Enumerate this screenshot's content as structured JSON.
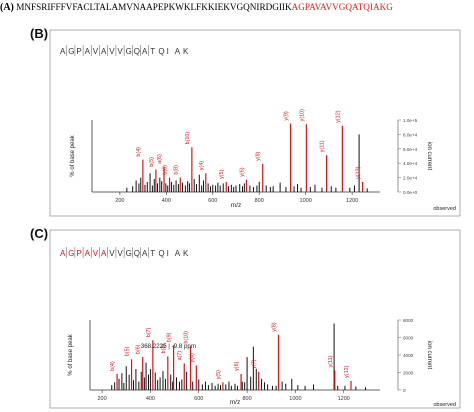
{
  "figure": {
    "panel_a_label": "(A)",
    "sequence_black": "MNFSRIFFFVFACLTALAMVNAAPEPKWKLFKKIEKVGQNIRDGIIK",
    "sequence_red": "AGPAVAVVGQATQIAKG",
    "colors": {
      "match_red": "#d8141b",
      "peak_black": "#000000",
      "axis_grey": "#7a7a7a"
    }
  },
  "chart_data": [
    {
      "panel": "(B)",
      "type": "bar",
      "peptide": "AGPAVAVVGQATQIAK",
      "peptide_red_count": 0,
      "peptide_letters": [
        "A",
        "G",
        "P",
        "A",
        "V",
        "A",
        "V",
        "V",
        "G",
        "Q",
        "A",
        "T",
        "Q",
        "I",
        "A",
        "K"
      ],
      "xlabel": "m/z",
      "ylabel_left": "% of base peak",
      "ylabel_right": "ion current",
      "corner_label": "observed",
      "xlim": [
        80,
        1320
      ],
      "xticks": [
        "200",
        "400",
        "600",
        "800",
        "1000",
        "1200"
      ],
      "ylim": [
        0,
        100
      ],
      "right_ticks": [
        "0.0e+0",
        "2.0e+4",
        "4.0e+4",
        "6.0e+4",
        "8.0e+4",
        "1.0e+5"
      ],
      "matched": [
        {
          "label": "b(4)",
          "mz": 299,
          "rel": 45
        },
        {
          "label": "b(5)",
          "mz": 355,
          "rel": 31
        },
        {
          "label": "a(6)",
          "mz": 390,
          "rel": 35
        },
        {
          "label": "b(6)",
          "mz": 414,
          "rel": 20
        },
        {
          "label": "b(8)",
          "mz": 460,
          "rel": 20
        },
        {
          "label": "b(10)",
          "mz": 510,
          "rel": 62
        },
        {
          "label": "y(4)",
          "mz": 570,
          "rel": 26
        },
        {
          "label": "y(5)",
          "mz": 658,
          "rel": 14
        },
        {
          "label": "y(6)",
          "mz": 745,
          "rel": 17
        },
        {
          "label": "y(8)",
          "mz": 815,
          "rel": 39
        },
        {
          "label": "y(9)",
          "mz": 935,
          "rel": 95
        },
        {
          "label": "y(10)",
          "mz": 1003,
          "rel": 94
        },
        {
          "label": "y(11)",
          "mz": 1090,
          "rel": 51
        },
        {
          "label": "y(12)",
          "mz": 1158,
          "rel": 92
        },
        {
          "label": "y(13)",
          "mz": 1245,
          "rel": 14
        }
      ],
      "unmatched": [
        [
          230,
          6
        ],
        [
          255,
          8
        ],
        [
          270,
          16
        ],
        [
          282,
          12
        ],
        [
          290,
          20
        ],
        [
          308,
          10
        ],
        [
          318,
          14
        ],
        [
          330,
          26
        ],
        [
          340,
          9
        ],
        [
          348,
          18
        ],
        [
          362,
          12
        ],
        [
          372,
          20
        ],
        [
          380,
          15
        ],
        [
          398,
          12
        ],
        [
          406,
          9
        ],
        [
          422,
          14
        ],
        [
          432,
          10
        ],
        [
          442,
          16
        ],
        [
          452,
          11
        ],
        [
          470,
          13
        ],
        [
          482,
          9
        ],
        [
          492,
          15
        ],
        [
          500,
          12
        ],
        [
          520,
          18
        ],
        [
          530,
          11
        ],
        [
          542,
          24
        ],
        [
          552,
          9
        ],
        [
          560,
          16
        ],
        [
          580,
          12
        ],
        [
          590,
          8
        ],
        [
          600,
          10
        ],
        [
          612,
          9
        ],
        [
          622,
          13
        ],
        [
          632,
          9
        ],
        [
          645,
          12
        ],
        [
          668,
          8
        ],
        [
          680,
          10
        ],
        [
          690,
          7
        ],
        [
          700,
          9
        ],
        [
          716,
          11
        ],
        [
          728,
          8
        ],
        [
          736,
          12
        ],
        [
          760,
          9
        ],
        [
          775,
          7
        ],
        [
          790,
          9
        ],
        [
          800,
          14
        ],
        [
          830,
          9
        ],
        [
          848,
          7
        ],
        [
          860,
          8
        ],
        [
          890,
          13
        ],
        [
          915,
          7
        ],
        [
          950,
          8
        ],
        [
          965,
          11
        ],
        [
          980,
          6
        ],
        [
          1020,
          7
        ],
        [
          1040,
          10
        ],
        [
          1070,
          6
        ],
        [
          1110,
          8
        ],
        [
          1130,
          6
        ],
        [
          1190,
          6
        ],
        [
          1210,
          9
        ],
        [
          1230,
          80
        ],
        [
          1265,
          5
        ]
      ]
    },
    {
      "panel": "(C)",
      "type": "bar",
      "peptide": "AGPAVAVVGQATQIAK",
      "peptide_red_count": 6,
      "peptide_letters": [
        "A",
        "G",
        "P",
        "A",
        "V",
        "A",
        "V",
        "V",
        "G",
        "Q",
        "A",
        "T",
        "Q",
        "I",
        "A",
        "K"
      ],
      "xlabel": "m/z",
      "ylabel_left": "% of base peak",
      "ylabel_right": "ion current",
      "corner_label": "observed",
      "xlim": [
        150,
        1350
      ],
      "xticks": [
        "200",
        "400",
        "600",
        "800",
        "1000",
        "1200"
      ],
      "ylim": [
        0,
        100
      ],
      "right_ticks": [
        "0",
        "2000",
        "4000",
        "6000",
        "8000"
      ],
      "annotation": "368.2225 | -9.8 ppm",
      "matched": [
        {
          "label": "b(4)",
          "mz": 262,
          "rel": 23
        },
        {
          "label": "b(5)",
          "mz": 322,
          "rel": 44
        },
        {
          "label": "b(6)",
          "mz": 368,
          "rel": 47
        },
        {
          "label": "b(7)",
          "mz": 410,
          "rel": 71
        },
        {
          "label": "b(8)",
          "mz": 472,
          "rel": 48
        },
        {
          "label": "b(9)",
          "mz": 496,
          "rel": 64
        },
        {
          "label": "a(7)",
          "mz": 540,
          "rel": 38
        },
        {
          "label": "b(10)",
          "mz": 566,
          "rel": 62
        },
        {
          "label": "y(4)",
          "mz": 590,
          "rel": 35
        },
        {
          "label": "y(5)",
          "mz": 700,
          "rel": 11
        },
        {
          "label": "y(6)",
          "mz": 775,
          "rel": 23
        },
        {
          "label": "y(7)",
          "mz": 848,
          "rel": 26
        },
        {
          "label": "y(8)",
          "mz": 930,
          "rel": 79
        },
        {
          "label": "y(11)",
          "mz": 1163,
          "rel": 28
        },
        {
          "label": "y(12)",
          "mz": 1230,
          "rel": 13
        }
      ],
      "unmatched": [
        [
          240,
          7
        ],
        [
          252,
          11
        ],
        [
          270,
          16
        ],
        [
          282,
          24
        ],
        [
          290,
          10
        ],
        [
          300,
          34
        ],
        [
          312,
          22
        ],
        [
          330,
          14
        ],
        [
          340,
          30
        ],
        [
          352,
          12
        ],
        [
          362,
          26
        ],
        [
          375,
          18
        ],
        [
          382,
          39
        ],
        [
          392,
          22
        ],
        [
          400,
          30
        ],
        [
          420,
          25
        ],
        [
          430,
          14
        ],
        [
          440,
          18
        ],
        [
          452,
          27
        ],
        [
          462,
          16
        ],
        [
          484,
          22
        ],
        [
          492,
          12
        ],
        [
          508,
          18
        ],
        [
          520,
          12
        ],
        [
          530,
          15
        ],
        [
          550,
          26
        ],
        [
          575,
          12
        ],
        [
          600,
          15
        ],
        [
          615,
          8
        ],
        [
          628,
          12
        ],
        [
          640,
          7
        ],
        [
          655,
          10
        ],
        [
          668,
          6
        ],
        [
          680,
          9
        ],
        [
          690,
          7
        ],
        [
          712,
          8
        ],
        [
          725,
          12
        ],
        [
          735,
          6
        ],
        [
          750,
          9
        ],
        [
          760,
          6
        ],
        [
          780,
          12
        ],
        [
          790,
          11
        ],
        [
          800,
          47
        ],
        [
          815,
          19
        ],
        [
          826,
          62
        ],
        [
          838,
          30
        ],
        [
          860,
          16
        ],
        [
          872,
          11
        ],
        [
          885,
          8
        ],
        [
          905,
          6
        ],
        [
          920,
          6
        ],
        [
          945,
          12
        ],
        [
          960,
          9
        ],
        [
          985,
          16
        ],
        [
          1010,
          7
        ],
        [
          1040,
          6
        ],
        [
          1075,
          8
        ],
        [
          1160,
          95
        ],
        [
          1175,
          6
        ],
        [
          1205,
          6
        ],
        [
          1250,
          5
        ],
        [
          1290,
          4
        ]
      ]
    }
  ]
}
